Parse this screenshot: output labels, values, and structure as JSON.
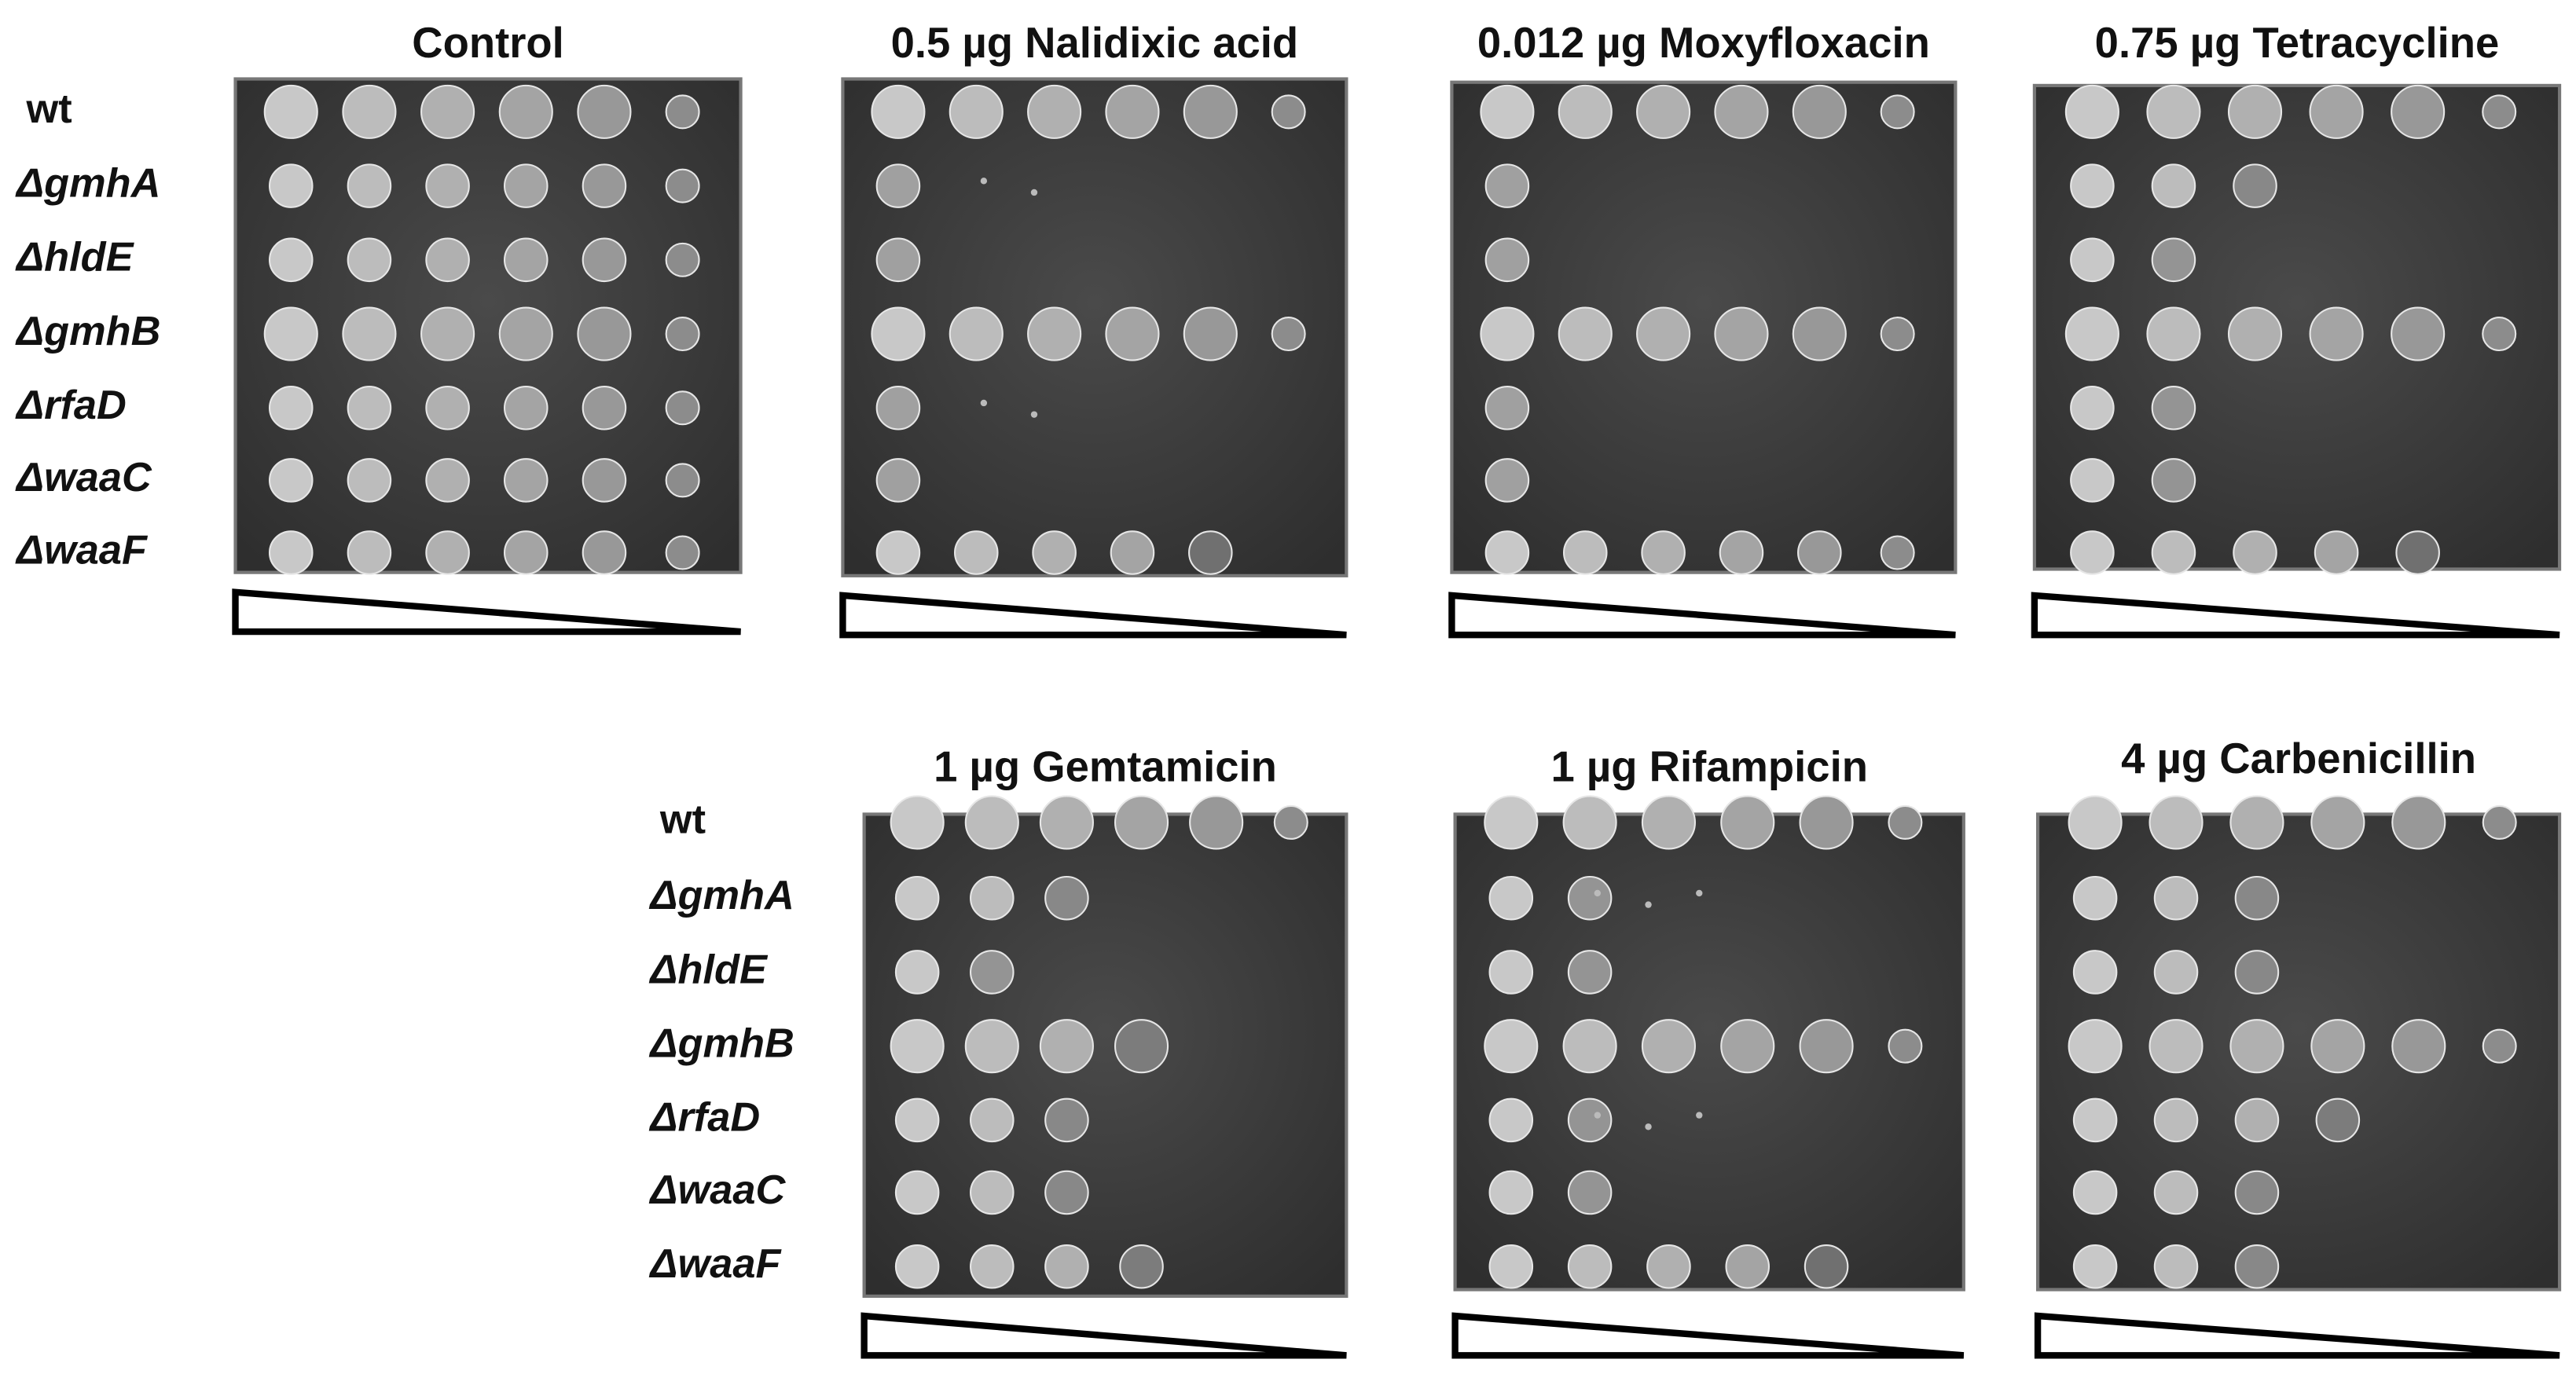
{
  "top_row": {
    "strains": [
      "wt",
      "ΔgmhA",
      "ΔhldE",
      "ΔgmhB",
      "ΔrfaD",
      "ΔwaaC",
      "ΔwaaF"
    ],
    "panels": [
      {
        "title": "Control"
      },
      {
        "title": "0.5 µg Nalidixic acid"
      },
      {
        "title": "0.012 µg Moxyfloxacin"
      },
      {
        "title": "0.75 µg Tetracycline"
      }
    ]
  },
  "bottom_row": {
    "strains": [
      "wt",
      "ΔgmhA",
      "ΔhldE",
      "ΔgmhB",
      "ΔrfaD",
      "ΔwaaC",
      "ΔwaaF"
    ],
    "panels": [
      {
        "title": "1 µg Gemtamicin"
      },
      {
        "title": "1 µg Rifampicin"
      },
      {
        "title": "4 µg Carbenicillin"
      }
    ]
  }
}
